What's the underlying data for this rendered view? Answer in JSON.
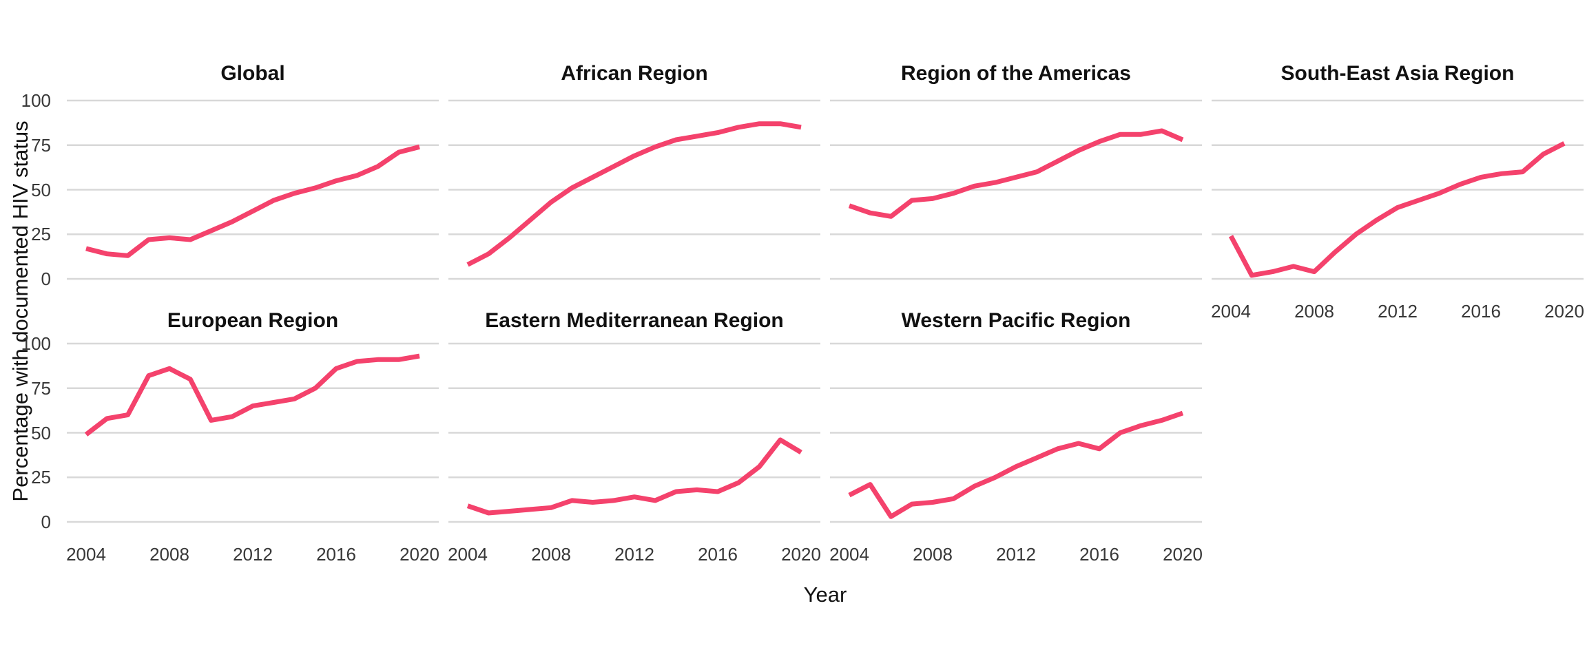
{
  "figure": {
    "background": "#ffffff"
  },
  "chart_data": {
    "type": "line",
    "title": "",
    "xlabel": "Year",
    "ylabel": "Percentage with documented HIV status",
    "x": [
      2004,
      2005,
      2006,
      2007,
      2008,
      2009,
      2010,
      2011,
      2012,
      2013,
      2014,
      2015,
      2016,
      2017,
      2018,
      2019,
      2020
    ],
    "x_ticks": [
      2004,
      2008,
      2012,
      2016,
      2020
    ],
    "y_ticks": [
      0,
      25,
      50,
      75,
      100
    ],
    "ylim": [
      0,
      100
    ],
    "grid": "horizontal-only",
    "legend": "none",
    "line_color": "#f4426c",
    "grid_color": "#d8d8d8",
    "facets": [
      {
        "title": "Global",
        "values": [
          17,
          14,
          13,
          22,
          23,
          22,
          27,
          32,
          38,
          44,
          48,
          51,
          55,
          58,
          63,
          71,
          74
        ]
      },
      {
        "title": "African Region",
        "values": [
          8,
          14,
          23,
          33,
          43,
          51,
          57,
          63,
          69,
          74,
          78,
          80,
          82,
          85,
          87,
          87,
          85
        ]
      },
      {
        "title": "Region of the Americas",
        "values": [
          41,
          37,
          35,
          44,
          45,
          48,
          52,
          54,
          57,
          60,
          66,
          72,
          77,
          81,
          81,
          83,
          78
        ]
      },
      {
        "title": "South-East Asia Region",
        "values": [
          24,
          2,
          4,
          7,
          4,
          15,
          25,
          33,
          40,
          44,
          48,
          53,
          57,
          59,
          60,
          70,
          76
        ]
      },
      {
        "title": "European Region",
        "values": [
          49,
          58,
          60,
          82,
          86,
          80,
          57,
          59,
          65,
          67,
          69,
          75,
          86,
          90,
          91,
          91,
          93
        ]
      },
      {
        "title": "Eastern Mediterranean Region",
        "values": [
          9,
          5,
          6,
          7,
          8,
          12,
          11,
          12,
          14,
          12,
          17,
          18,
          17,
          22,
          31,
          46,
          39
        ]
      },
      {
        "title": "Western Pacific Region",
        "values": [
          15,
          21,
          3,
          10,
          11,
          13,
          20,
          25,
          31,
          36,
          41,
          44,
          41,
          50,
          54,
          57,
          61
        ]
      }
    ]
  }
}
